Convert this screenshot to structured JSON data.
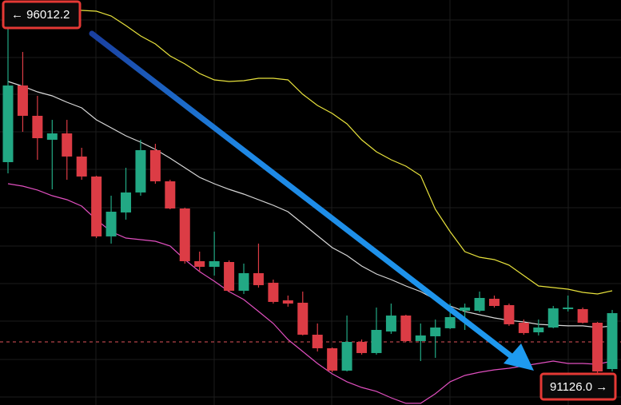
{
  "chart_data": {
    "type": "candlestick",
    "ylim": [
      90709,
      96119
    ],
    "up_color": "#22a884",
    "down_color": "#dc3c45",
    "candles": {
      "open": [
        93953,
        94977,
        94572,
        94252,
        94337,
        94028,
        93761,
        92961,
        93281,
        93548,
        94113,
        93697,
        93334,
        92630,
        92555,
        92619,
        92235,
        92470,
        92342,
        92107,
        92075,
        91648,
        91467,
        91168,
        91552,
        91403,
        91691,
        91904,
        91563,
        91627,
        91734,
        91968,
        91968,
        92128,
        92043,
        91808,
        91680,
        91744,
        91990,
        91990,
        91808,
        91189
      ],
      "high": [
        96012.2,
        95425,
        94839,
        94518,
        94518,
        94145,
        93772,
        93505,
        93878,
        94252,
        94198,
        93718,
        93345,
        92758,
        93025,
        92641,
        92598,
        92865,
        92384,
        92171,
        92224,
        91798,
        91478,
        91904,
        91584,
        92011,
        92064,
        91915,
        91798,
        91851,
        92064,
        92064,
        92224,
        92171,
        92064,
        91851,
        91851,
        92032,
        92171,
        92011,
        91819,
        91979
      ],
      "low": [
        93804,
        94358,
        93985,
        93590,
        93718,
        93718,
        92939,
        92865,
        93185,
        93505,
        93665,
        93323,
        92598,
        92491,
        92438,
        92214,
        92192,
        92278,
        92064,
        92022,
        91638,
        91424,
        91146,
        91157,
        91382,
        91382,
        91659,
        91552,
        91296,
        91339,
        91723,
        91712,
        91947,
        92011,
        91766,
        91648,
        91638,
        91734,
        91958,
        91798,
        91126.0,
        91157
      ],
      "close": [
        94977,
        94572,
        94273,
        94337,
        94028,
        93761,
        92961,
        93291,
        93548,
        94113,
        93697,
        93334,
        92630,
        92555,
        92630,
        92235,
        92470,
        92310,
        92086,
        92064,
        91648,
        91467,
        91168,
        91552,
        91403,
        91712,
        91904,
        91563,
        91638,
        91744,
        91883,
        92011,
        92139,
        92032,
        91787,
        91670,
        91744,
        92000,
        92011,
        91808,
        91157,
        91936
      ]
    },
    "bands": [
      {
        "color": "#e8e23c",
        "values": [
          96034,
          96034,
          96012,
          95991,
          95980,
          95980,
          95970,
          95906,
          95778,
          95639,
          95532,
          95372,
          95265,
          95137,
          95052,
          95031,
          95041,
          95073,
          95073,
          95052,
          94860,
          94711,
          94604,
          94465,
          94252,
          94092,
          93985,
          93900,
          93772,
          93323,
          93025,
          92758,
          92683,
          92651,
          92577,
          92438,
          92299,
          92278,
          92256,
          92214,
          92192,
          92235
        ]
      },
      {
        "color": "#d8d8d8",
        "values": [
          95031,
          94967,
          94892,
          94839,
          94753,
          94679,
          94518,
          94412,
          94305,
          94220,
          94124,
          94006,
          93878,
          93750,
          93665,
          93590,
          93526,
          93451,
          93377,
          93291,
          93131,
          92971,
          92811,
          92705,
          92566,
          92459,
          92384,
          92299,
          92224,
          92118,
          92032,
          91958,
          91915,
          91872,
          91840,
          91819,
          91787,
          91776,
          91766,
          91766,
          91744,
          91766
        ]
      },
      {
        "color": "#e04fbf",
        "values": [
          93665,
          93633,
          93580,
          93505,
          93451,
          93366,
          93185,
          93025,
          92939,
          92918,
          92897,
          92833,
          92651,
          92491,
          92363,
          92224,
          92118,
          91958,
          91798,
          91584,
          91424,
          91264,
          91125,
          91019,
          90944,
          90891,
          90805,
          90731,
          90731,
          90859,
          91019,
          91104,
          91147,
          91179,
          91200,
          91232,
          91264,
          91296,
          91264,
          91264,
          91253,
          91296
        ]
      }
    ],
    "price_line": {
      "value": 91552,
      "color": "#e0525a"
    },
    "high_label": "← 96012.2",
    "low_label": "91126.0 →"
  }
}
